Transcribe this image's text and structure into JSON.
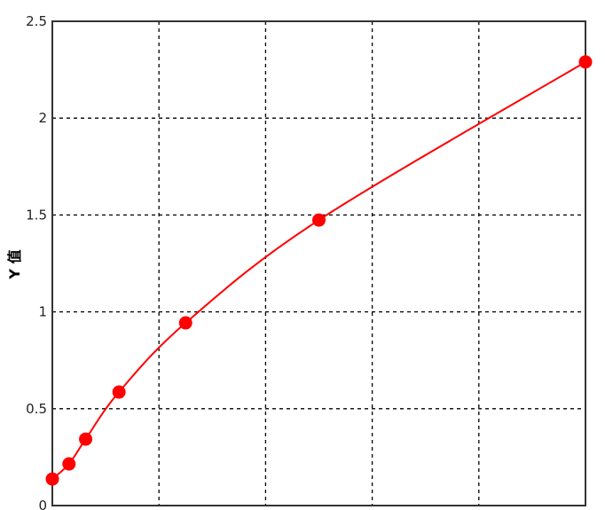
{
  "chart_data": {
    "type": "scatter",
    "title": "",
    "xlabel": "",
    "ylabel": "Y 值",
    "xlim": [
      0,
      1000
    ],
    "ylim": [
      0,
      2.5
    ],
    "xticks": [
      "0",
      "200",
      "400",
      "600",
      "800",
      "1000"
    ],
    "yticks": [
      "0",
      "0.5",
      "1",
      "1.5",
      "2",
      "2.5"
    ],
    "grid": true,
    "series": [
      {
        "x": [
          0,
          31.25,
          62.5,
          125,
          250,
          500,
          1000
        ],
        "y": [
          0.137,
          0.215,
          0.343,
          0.586,
          0.943,
          1.474,
          2.29
        ],
        "color": "#ff0000",
        "marker": "filled-circle",
        "fit_curve": true
      }
    ]
  }
}
